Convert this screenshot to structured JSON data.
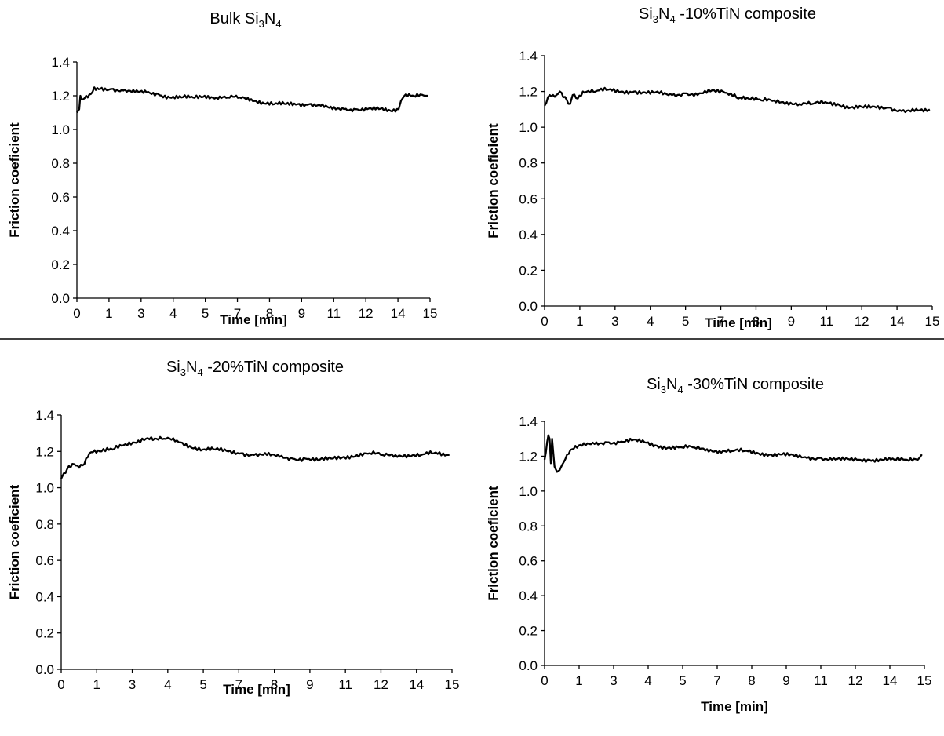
{
  "chart_data": [
    {
      "type": "line",
      "title": "Bulk Si3N4",
      "title_parts": {
        "prefix": "Bulk Si",
        "sub1": "3",
        "mid": "N",
        "sub2": "4",
        "suffix": ""
      },
      "xlabel": "Time [min]",
      "ylabel": "Friction coeficient",
      "xticks": [
        "0",
        "1",
        "3",
        "4",
        "5",
        "7",
        "8",
        "9",
        "11",
        "12",
        "14",
        "15"
      ],
      "yticks": [
        "0.0",
        "0.2",
        "0.4",
        "0.6",
        "0.8",
        "1.0",
        "1.2",
        "1.4"
      ],
      "xlim": [
        0,
        15.2
      ],
      "ylim": [
        0,
        1.4
      ],
      "grid": false,
      "series": [
        {
          "color": "#000000",
          "x": [
            0,
            0.1,
            0.15,
            0.2,
            0.4,
            0.6,
            0.75,
            1,
            1.5,
            2,
            2.5,
            3,
            3.5,
            4,
            4.5,
            5,
            5.5,
            6,
            6.5,
            7,
            7.5,
            8,
            8.5,
            9,
            9.5,
            10,
            10.5,
            11,
            11.5,
            12,
            12.5,
            13,
            13.5,
            13.85,
            13.95,
            14.1,
            14.5,
            15,
            15.1
          ],
          "y": [
            1.1,
            1.12,
            1.2,
            1.18,
            1.2,
            1.21,
            1.25,
            1.24,
            1.24,
            1.23,
            1.22,
            1.22,
            1.21,
            1.19,
            1.19,
            1.19,
            1.2,
            1.19,
            1.19,
            1.19,
            1.18,
            1.16,
            1.15,
            1.15,
            1.15,
            1.15,
            1.14,
            1.12,
            1.12,
            1.12,
            1.12,
            1.12,
            1.11,
            1.12,
            1.17,
            1.2,
            1.2,
            1.2,
            1.2
          ]
        }
      ]
    },
    {
      "type": "line",
      "title": "Si3N4 -10%TiN composite",
      "title_parts": {
        "prefix": "Si",
        "sub1": "3",
        "mid": "N",
        "sub2": "4",
        "suffix": " -10%TiN composite"
      },
      "xlabel": "Time [min]",
      "ylabel": "Friction coeficient",
      "xticks": [
        "0",
        "1",
        "3",
        "4",
        "5",
        "7",
        "8",
        "9",
        "11",
        "12",
        "14",
        "15"
      ],
      "yticks": [
        "0.0",
        "0.2",
        "0.4",
        "0.6",
        "0.8",
        "1.0",
        "1.2",
        "1.4"
      ],
      "xlim": [
        0,
        15.2
      ],
      "ylim": [
        0,
        1.4
      ],
      "grid": false,
      "series": [
        {
          "color": "#000000",
          "x": [
            0,
            0.2,
            0.4,
            0.6,
            0.8,
            1.0,
            1.1,
            1.3,
            1.5,
            2,
            2.5,
            3,
            3.5,
            4,
            4.5,
            5,
            5.5,
            6,
            6.5,
            7,
            7.3,
            7.6,
            8,
            8.5,
            9,
            9.5,
            10,
            10.5,
            11,
            11.5,
            12,
            12.5,
            13,
            13.5,
            14,
            14.5,
            15,
            15.1
          ],
          "y": [
            1.12,
            1.18,
            1.17,
            1.2,
            1.17,
            1.13,
            1.18,
            1.16,
            1.2,
            1.2,
            1.21,
            1.2,
            1.2,
            1.19,
            1.19,
            1.18,
            1.19,
            1.18,
            1.2,
            1.2,
            1.19,
            1.16,
            1.16,
            1.15,
            1.15,
            1.14,
            1.13,
            1.13,
            1.14,
            1.13,
            1.11,
            1.11,
            1.11,
            1.11,
            1.09,
            1.09,
            1.09,
            1.1
          ]
        }
      ]
    },
    {
      "type": "line",
      "title": "Si3N4 -20%TiN composite",
      "title_parts": {
        "prefix": "Si",
        "sub1": "3",
        "mid": "N",
        "sub2": "4",
        "suffix": " -20%TiN composite"
      },
      "xlabel": "Time [min]",
      "ylabel": "Friction coeficient",
      "xticks": [
        "0",
        "1",
        "3",
        "4",
        "5",
        "7",
        "8",
        "9",
        "11",
        "12",
        "14",
        "15"
      ],
      "yticks": [
        "0.0",
        "0.2",
        "0.4",
        "0.6",
        "0.8",
        "1.0",
        "1.2",
        "1.4"
      ],
      "xlim": [
        0,
        15.2
      ],
      "ylim": [
        0,
        1.4
      ],
      "grid": false,
      "series": [
        {
          "color": "#000000",
          "x": [
            0,
            0.1,
            0.3,
            0.5,
            0.7,
            0.9,
            1.1,
            1.5,
            2,
            2.5,
            3,
            3.3,
            3.7,
            4,
            4.5,
            5,
            5.5,
            6,
            6.5,
            7,
            7.5,
            8,
            8.5,
            9,
            9.5,
            10,
            10.5,
            11,
            11.5,
            12,
            12.5,
            13,
            13.5,
            14,
            14.5,
            15,
            15.1
          ],
          "y": [
            1.05,
            1.08,
            1.12,
            1.13,
            1.11,
            1.13,
            1.19,
            1.2,
            1.21,
            1.24,
            1.26,
            1.27,
            1.27,
            1.27,
            1.26,
            1.23,
            1.21,
            1.21,
            1.2,
            1.19,
            1.18,
            1.18,
            1.17,
            1.16,
            1.16,
            1.15,
            1.16,
            1.17,
            1.18,
            1.19,
            1.18,
            1.18,
            1.18,
            1.18,
            1.19,
            1.18,
            1.18
          ]
        }
      ]
    },
    {
      "type": "line",
      "title": "Si3N4 -30%TiN composite",
      "title_parts": {
        "prefix": "Si",
        "sub1": "3",
        "mid": "N",
        "sub2": "4",
        "suffix": " -30%TiN composite"
      },
      "xlabel": "Time [min]",
      "ylabel": "Friction coeficient",
      "xticks": [
        "0",
        "1",
        "3",
        "4",
        "5",
        "7",
        "8",
        "9",
        "11",
        "12",
        "14",
        "15"
      ],
      "yticks": [
        "0.0",
        "0.2",
        "0.4",
        "0.6",
        "0.8",
        "1.0",
        "1.2",
        "1.4"
      ],
      "xlim": [
        0,
        15.2
      ],
      "ylim": [
        0,
        1.4
      ],
      "grid": false,
      "series": [
        {
          "color": "#000000",
          "x": [
            0,
            0.05,
            0.1,
            0.15,
            0.2,
            0.25,
            0.3,
            0.35,
            0.4,
            0.5,
            0.6,
            0.7,
            0.9,
            1.1,
            1.5,
            2,
            2.5,
            3,
            3.5,
            4,
            4.5,
            5,
            5.5,
            6,
            6.5,
            7,
            7.5,
            8,
            8.5,
            9,
            9.5,
            10,
            10.5,
            11,
            11.5,
            12,
            12.5,
            13,
            13.5,
            14,
            14.5,
            15,
            15.1
          ],
          "y": [
            1.18,
            1.22,
            1.28,
            1.32,
            1.3,
            1.16,
            1.3,
            1.22,
            1.14,
            1.11,
            1.12,
            1.15,
            1.21,
            1.24,
            1.26,
            1.27,
            1.28,
            1.28,
            1.29,
            1.28,
            1.26,
            1.25,
            1.25,
            1.25,
            1.24,
            1.23,
            1.23,
            1.23,
            1.22,
            1.21,
            1.21,
            1.2,
            1.19,
            1.19,
            1.18,
            1.18,
            1.18,
            1.18,
            1.18,
            1.18,
            1.18,
            1.19,
            1.21
          ]
        }
      ]
    }
  ]
}
